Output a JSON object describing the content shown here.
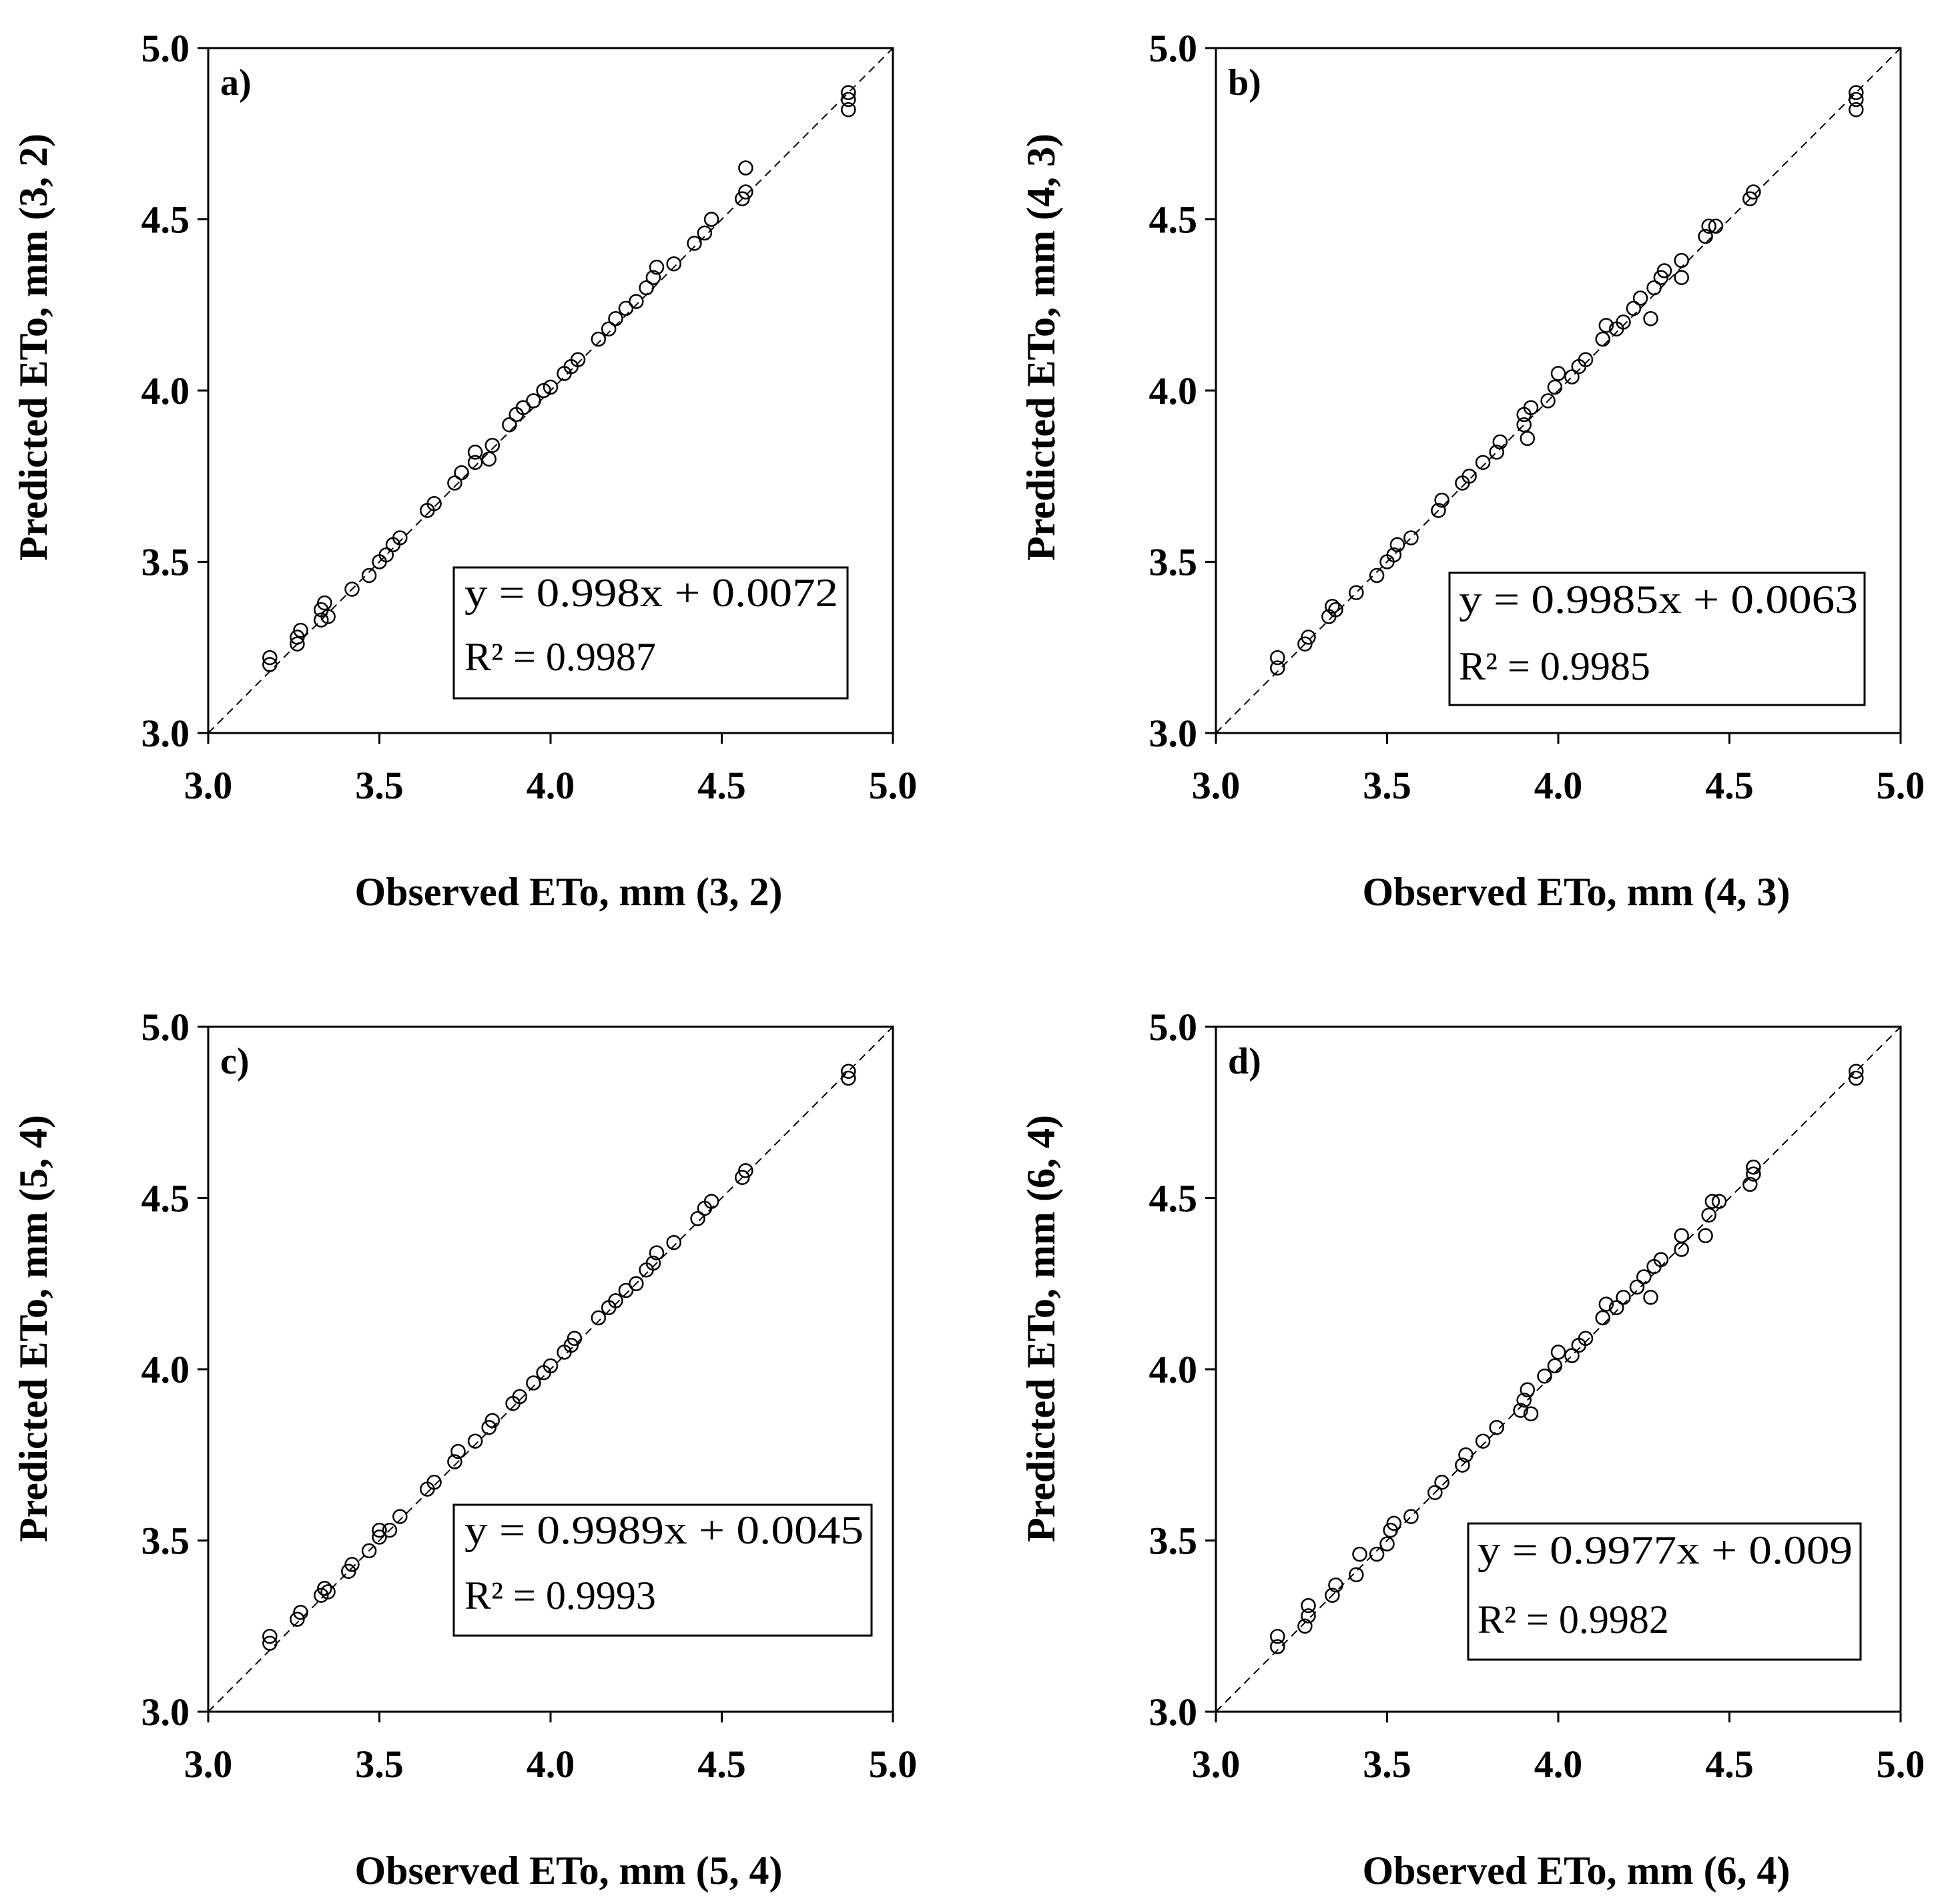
{
  "chart_data": [
    {
      "type": "scatter",
      "panel_label": "a)",
      "xlabel": "Observed ETo, mm (3, 2)",
      "ylabel": "Predicted ETo, mm (3, 2)",
      "xlim": [
        3.0,
        5.0
      ],
      "ylim": [
        3.0,
        5.0
      ],
      "xticks": [
        "3.0",
        "3.5",
        "4.0",
        "4.5",
        "5.0"
      ],
      "yticks": [
        "3.0",
        "3.5",
        "4.0",
        "4.5",
        "5.0"
      ],
      "equation": "y = 0.998x + 0.0072",
      "r_squared": "R² = 0.9987",
      "reference_line": "1:1",
      "points": [
        [
          3.18,
          3.2
        ],
        [
          3.18,
          3.22
        ],
        [
          3.26,
          3.26
        ],
        [
          3.26,
          3.28
        ],
        [
          3.27,
          3.3
        ],
        [
          3.33,
          3.33
        ],
        [
          3.33,
          3.36
        ],
        [
          3.34,
          3.38
        ],
        [
          3.35,
          3.34
        ],
        [
          3.42,
          3.42
        ],
        [
          3.47,
          3.46
        ],
        [
          3.5,
          3.5
        ],
        [
          3.52,
          3.52
        ],
        [
          3.54,
          3.55
        ],
        [
          3.56,
          3.57
        ],
        [
          3.64,
          3.65
        ],
        [
          3.66,
          3.67
        ],
        [
          3.72,
          3.73
        ],
        [
          3.74,
          3.76
        ],
        [
          3.78,
          3.79
        ],
        [
          3.78,
          3.82
        ],
        [
          3.82,
          3.8
        ],
        [
          3.83,
          3.84
        ],
        [
          3.88,
          3.9
        ],
        [
          3.9,
          3.93
        ],
        [
          3.92,
          3.95
        ],
        [
          3.95,
          3.97
        ],
        [
          3.98,
          4.0
        ],
        [
          4.0,
          4.01
        ],
        [
          4.04,
          4.05
        ],
        [
          4.06,
          4.07
        ],
        [
          4.08,
          4.09
        ],
        [
          4.14,
          4.15
        ],
        [
          4.17,
          4.18
        ],
        [
          4.19,
          4.21
        ],
        [
          4.22,
          4.24
        ],
        [
          4.25,
          4.26
        ],
        [
          4.28,
          4.3
        ],
        [
          4.3,
          4.33
        ],
        [
          4.31,
          4.36
        ],
        [
          4.36,
          4.37
        ],
        [
          4.42,
          4.43
        ],
        [
          4.45,
          4.46
        ],
        [
          4.47,
          4.5
        ],
        [
          4.56,
          4.56
        ],
        [
          4.57,
          4.58
        ],
        [
          4.57,
          4.65
        ],
        [
          4.87,
          4.82
        ],
        [
          4.87,
          4.85
        ],
        [
          4.87,
          4.87
        ]
      ]
    },
    {
      "type": "scatter",
      "panel_label": "b)",
      "xlabel": "Observed ETo, mm (4, 3)",
      "ylabel": "Predicted ETo, mm (4, 3)",
      "xlim": [
        3.0,
        5.0
      ],
      "ylim": [
        3.0,
        5.0
      ],
      "xticks": [
        "3.0",
        "3.5",
        "4.0",
        "4.5",
        "5.0"
      ],
      "yticks": [
        "3.0",
        "3.5",
        "4.0",
        "4.5",
        "5.0"
      ],
      "equation": "y = 0.9985x + 0.0063",
      "r_squared": "R² = 0.9985",
      "reference_line": "1:1",
      "points": [
        [
          3.18,
          3.19
        ],
        [
          3.18,
          3.22
        ],
        [
          3.26,
          3.26
        ],
        [
          3.27,
          3.28
        ],
        [
          3.33,
          3.34
        ],
        [
          3.34,
          3.37
        ],
        [
          3.35,
          3.36
        ],
        [
          3.41,
          3.41
        ],
        [
          3.47,
          3.46
        ],
        [
          3.5,
          3.5
        ],
        [
          3.52,
          3.52
        ],
        [
          3.53,
          3.55
        ],
        [
          3.57,
          3.57
        ],
        [
          3.65,
          3.65
        ],
        [
          3.66,
          3.68
        ],
        [
          3.72,
          3.73
        ],
        [
          3.74,
          3.75
        ],
        [
          3.78,
          3.79
        ],
        [
          3.82,
          3.82
        ],
        [
          3.83,
          3.85
        ],
        [
          3.9,
          3.9
        ],
        [
          3.9,
          3.93
        ],
        [
          3.91,
          3.86
        ],
        [
          3.92,
          3.95
        ],
        [
          3.97,
          3.97
        ],
        [
          3.99,
          4.01
        ],
        [
          4.0,
          4.05
        ],
        [
          4.04,
          4.04
        ],
        [
          4.06,
          4.07
        ],
        [
          4.08,
          4.09
        ],
        [
          4.13,
          4.15
        ],
        [
          4.14,
          4.19
        ],
        [
          4.17,
          4.18
        ],
        [
          4.19,
          4.2
        ],
        [
          4.22,
          4.24
        ],
        [
          4.24,
          4.27
        ],
        [
          4.27,
          4.21
        ],
        [
          4.28,
          4.3
        ],
        [
          4.3,
          4.33
        ],
        [
          4.31,
          4.35
        ],
        [
          4.36,
          4.33
        ],
        [
          4.36,
          4.38
        ],
        [
          4.43,
          4.45
        ],
        [
          4.44,
          4.48
        ],
        [
          4.46,
          4.48
        ],
        [
          4.56,
          4.56
        ],
        [
          4.57,
          4.58
        ],
        [
          4.87,
          4.82
        ],
        [
          4.87,
          4.85
        ],
        [
          4.87,
          4.87
        ]
      ]
    },
    {
      "type": "scatter",
      "panel_label": "c)",
      "xlabel": "Observed ETo, mm (5, 4)",
      "ylabel": "Predicted ETo, mm  (5, 4)",
      "xlim": [
        3.0,
        5.0
      ],
      "ylim": [
        3.0,
        5.0
      ],
      "xticks": [
        "3.0",
        "3.5",
        "4.0",
        "4.5",
        "5.0"
      ],
      "yticks": [
        "3.0",
        "3.5",
        "4.0",
        "4.5",
        "5.0"
      ],
      "equation": "y = 0.9989x + 0.0045",
      "r_squared": "R² = 0.9993",
      "reference_line": "1:1",
      "points": [
        [
          3.18,
          3.2
        ],
        [
          3.18,
          3.22
        ],
        [
          3.26,
          3.27
        ],
        [
          3.27,
          3.29
        ],
        [
          3.33,
          3.34
        ],
        [
          3.34,
          3.36
        ],
        [
          3.35,
          3.35
        ],
        [
          3.41,
          3.41
        ],
        [
          3.42,
          3.43
        ],
        [
          3.47,
          3.47
        ],
        [
          3.5,
          3.51
        ],
        [
          3.5,
          3.53
        ],
        [
          3.53,
          3.53
        ],
        [
          3.56,
          3.57
        ],
        [
          3.64,
          3.65
        ],
        [
          3.66,
          3.67
        ],
        [
          3.72,
          3.73
        ],
        [
          3.73,
          3.76
        ],
        [
          3.78,
          3.79
        ],
        [
          3.82,
          3.83
        ],
        [
          3.83,
          3.85
        ],
        [
          3.89,
          3.9
        ],
        [
          3.91,
          3.92
        ],
        [
          3.95,
          3.96
        ],
        [
          3.98,
          3.99
        ],
        [
          4.0,
          4.01
        ],
        [
          4.04,
          4.05
        ],
        [
          4.06,
          4.07
        ],
        [
          4.07,
          4.09
        ],
        [
          4.14,
          4.15
        ],
        [
          4.17,
          4.18
        ],
        [
          4.19,
          4.2
        ],
        [
          4.22,
          4.23
        ],
        [
          4.25,
          4.25
        ],
        [
          4.28,
          4.29
        ],
        [
          4.3,
          4.31
        ],
        [
          4.31,
          4.34
        ],
        [
          4.36,
          4.37
        ],
        [
          4.43,
          4.44
        ],
        [
          4.45,
          4.47
        ],
        [
          4.47,
          4.49
        ],
        [
          4.56,
          4.56
        ],
        [
          4.57,
          4.58
        ],
        [
          4.87,
          4.85
        ],
        [
          4.87,
          4.87
        ]
      ]
    },
    {
      "type": "scatter",
      "panel_label": "d)",
      "xlabel": "Observed ETo, mm (6, 4)",
      "ylabel": "Predicted ETo, mm (6, 4)",
      "xlim": [
        3.0,
        5.0
      ],
      "ylim": [
        3.0,
        5.0
      ],
      "xticks": [
        "3.0",
        "3.5",
        "4.0",
        "4.5",
        "5.0"
      ],
      "yticks": [
        "3.0",
        "3.5",
        "4.0",
        "4.5",
        "5.0"
      ],
      "equation": "y = 0.9977x + 0.009",
      "r_squared": "R² = 0.9982",
      "reference_line": "1:1",
      "points": [
        [
          3.18,
          3.19
        ],
        [
          3.18,
          3.22
        ],
        [
          3.26,
          3.25
        ],
        [
          3.27,
          3.28
        ],
        [
          3.27,
          3.31
        ],
        [
          3.34,
          3.34
        ],
        [
          3.35,
          3.37
        ],
        [
          3.41,
          3.4
        ],
        [
          3.42,
          3.46
        ],
        [
          3.47,
          3.46
        ],
        [
          3.5,
          3.49
        ],
        [
          3.51,
          3.53
        ],
        [
          3.52,
          3.55
        ],
        [
          3.57,
          3.57
        ],
        [
          3.64,
          3.64
        ],
        [
          3.66,
          3.67
        ],
        [
          3.72,
          3.72
        ],
        [
          3.73,
          3.75
        ],
        [
          3.78,
          3.79
        ],
        [
          3.82,
          3.83
        ],
        [
          3.89,
          3.88
        ],
        [
          3.9,
          3.91
        ],
        [
          3.91,
          3.94
        ],
        [
          3.92,
          3.87
        ],
        [
          3.96,
          3.98
        ],
        [
          3.99,
          4.01
        ],
        [
          4.0,
          4.05
        ],
        [
          4.04,
          4.04
        ],
        [
          4.06,
          4.07
        ],
        [
          4.08,
          4.09
        ],
        [
          4.13,
          4.15
        ],
        [
          4.14,
          4.19
        ],
        [
          4.17,
          4.18
        ],
        [
          4.19,
          4.21
        ],
        [
          4.23,
          4.24
        ],
        [
          4.25,
          4.27
        ],
        [
          4.27,
          4.21
        ],
        [
          4.28,
          4.3
        ],
        [
          4.3,
          4.32
        ],
        [
          4.36,
          4.35
        ],
        [
          4.36,
          4.39
        ],
        [
          4.43,
          4.39
        ],
        [
          4.44,
          4.45
        ],
        [
          4.45,
          4.49
        ],
        [
          4.47,
          4.49
        ],
        [
          4.56,
          4.54
        ],
        [
          4.57,
          4.57
        ],
        [
          4.57,
          4.59
        ],
        [
          4.87,
          4.85
        ],
        [
          4.87,
          4.87
        ]
      ]
    }
  ]
}
